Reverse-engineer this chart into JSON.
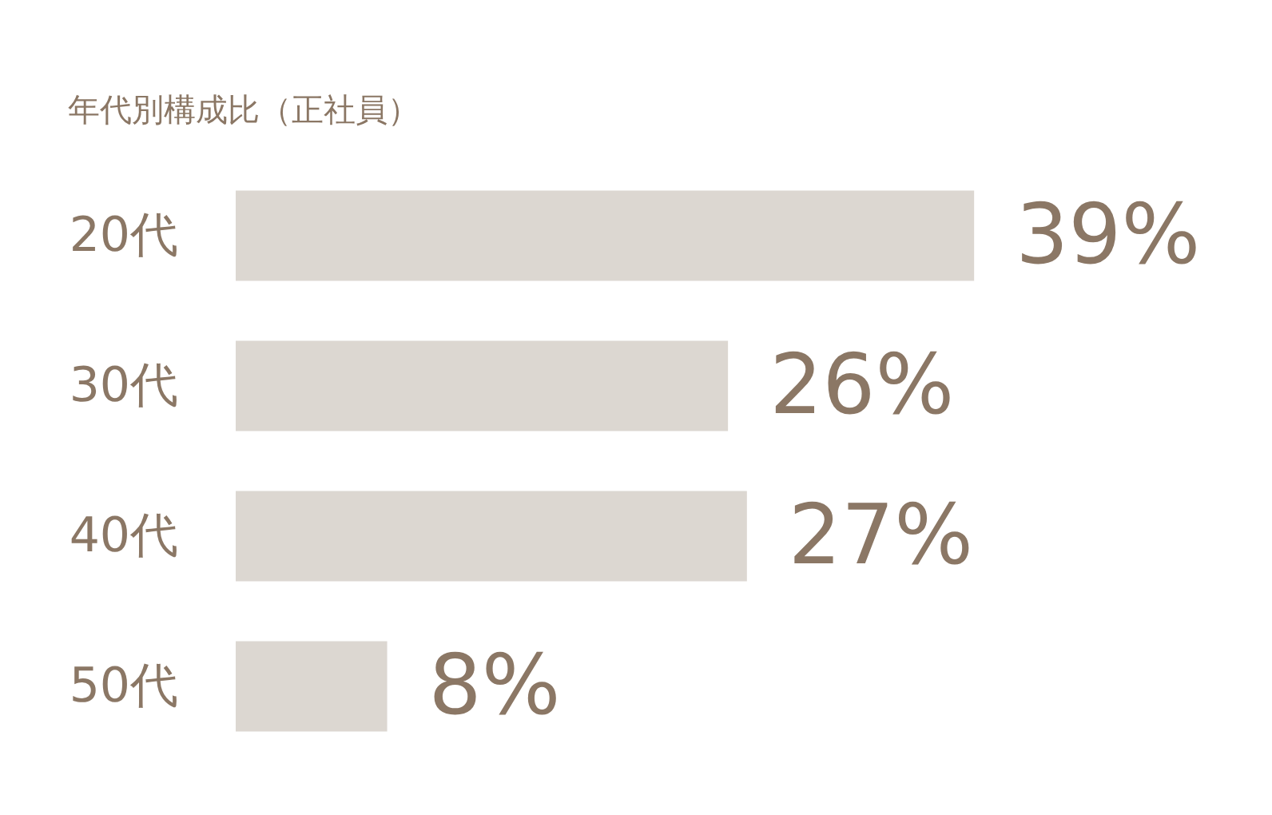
{
  "chart_data": {
    "type": "bar",
    "orientation": "horizontal",
    "title": "年代別構成比（正社員）",
    "categories": [
      "20代",
      "30代",
      "40代",
      "50代"
    ],
    "values": [
      39,
      26,
      27,
      8
    ],
    "value_labels": [
      "39%",
      "26%",
      "27%",
      "8%"
    ],
    "color": "#dcd7d1",
    "grid": false
  }
}
